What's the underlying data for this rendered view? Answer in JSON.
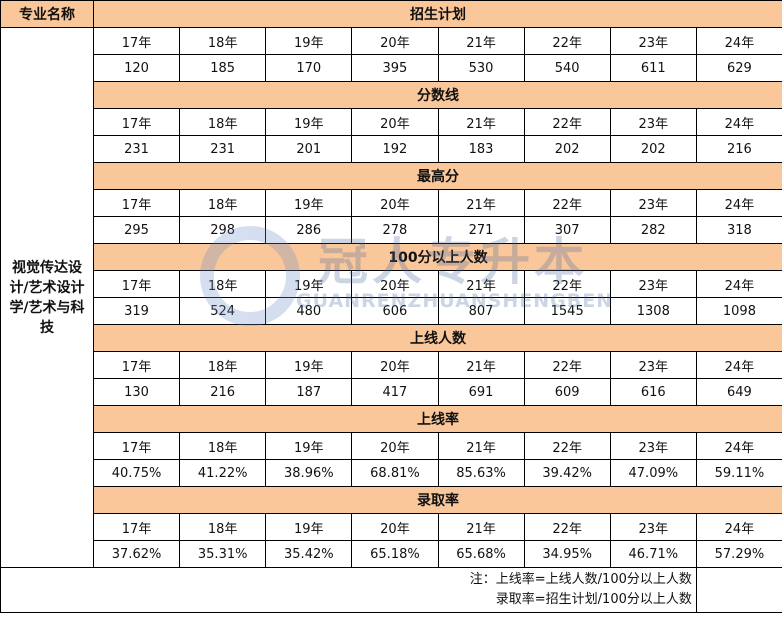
{
  "header": {
    "label": "专业名称"
  },
  "major": "视觉传达设计/艺术设计学/艺术与科技",
  "sections": [
    {
      "title": "招生计划",
      "years": [
        "17年",
        "18年",
        "19年",
        "20年",
        "21年",
        "22年",
        "23年",
        "24年"
      ],
      "values": [
        120,
        185,
        170,
        395,
        530,
        540,
        611,
        629
      ]
    },
    {
      "title": "分数线",
      "years": [
        "17年",
        "18年",
        "19年",
        "20年",
        "21年",
        "22年",
        "23年",
        "24年"
      ],
      "values": [
        231,
        231,
        201,
        192,
        183,
        202,
        202,
        216
      ]
    },
    {
      "title": "最高分",
      "years": [
        "17年",
        "18年",
        "19年",
        "20年",
        "21年",
        "22年",
        "23年",
        "24年"
      ],
      "values": [
        295,
        298,
        286,
        278,
        271,
        307,
        282,
        318
      ]
    },
    {
      "title": "100分以上人数",
      "years": [
        "17年",
        "18年",
        "19年",
        "20年",
        "21年",
        "22年",
        "23年",
        "24年"
      ],
      "values": [
        319,
        524,
        480,
        606,
        807,
        1545,
        1308,
        1098
      ]
    },
    {
      "title": "上线人数",
      "years": [
        "17年",
        "18年",
        "19年",
        "20年",
        "21年",
        "22年",
        "23年",
        "24年"
      ],
      "values": [
        130,
        216,
        187,
        417,
        691,
        609,
        616,
        649
      ]
    },
    {
      "title": "上线率",
      "years": [
        "17年",
        "18年",
        "19年",
        "20年",
        "21年",
        "22年",
        "23年",
        "24年"
      ],
      "values": [
        "40.75%",
        "41.22%",
        "38.96%",
        "68.81%",
        "85.63%",
        "39.42%",
        "47.09%",
        "59.11%"
      ]
    },
    {
      "title": "录取率",
      "years": [
        "17年",
        "18年",
        "19年",
        "20年",
        "21年",
        "22年",
        "23年",
        "24年"
      ],
      "values": [
        "37.62%",
        "35.31%",
        "35.42%",
        "65.18%",
        "65.68%",
        "34.95%",
        "46.71%",
        "57.29%"
      ]
    }
  ],
  "notes": [
    "注：上线率=上线人数/100分以上人数",
    "录取率=招生计划/100分以上人数"
  ],
  "watermark": {
    "text": "冠人专升本",
    "subtitle": "GUANRENZHUANSHENGBEN"
  }
}
